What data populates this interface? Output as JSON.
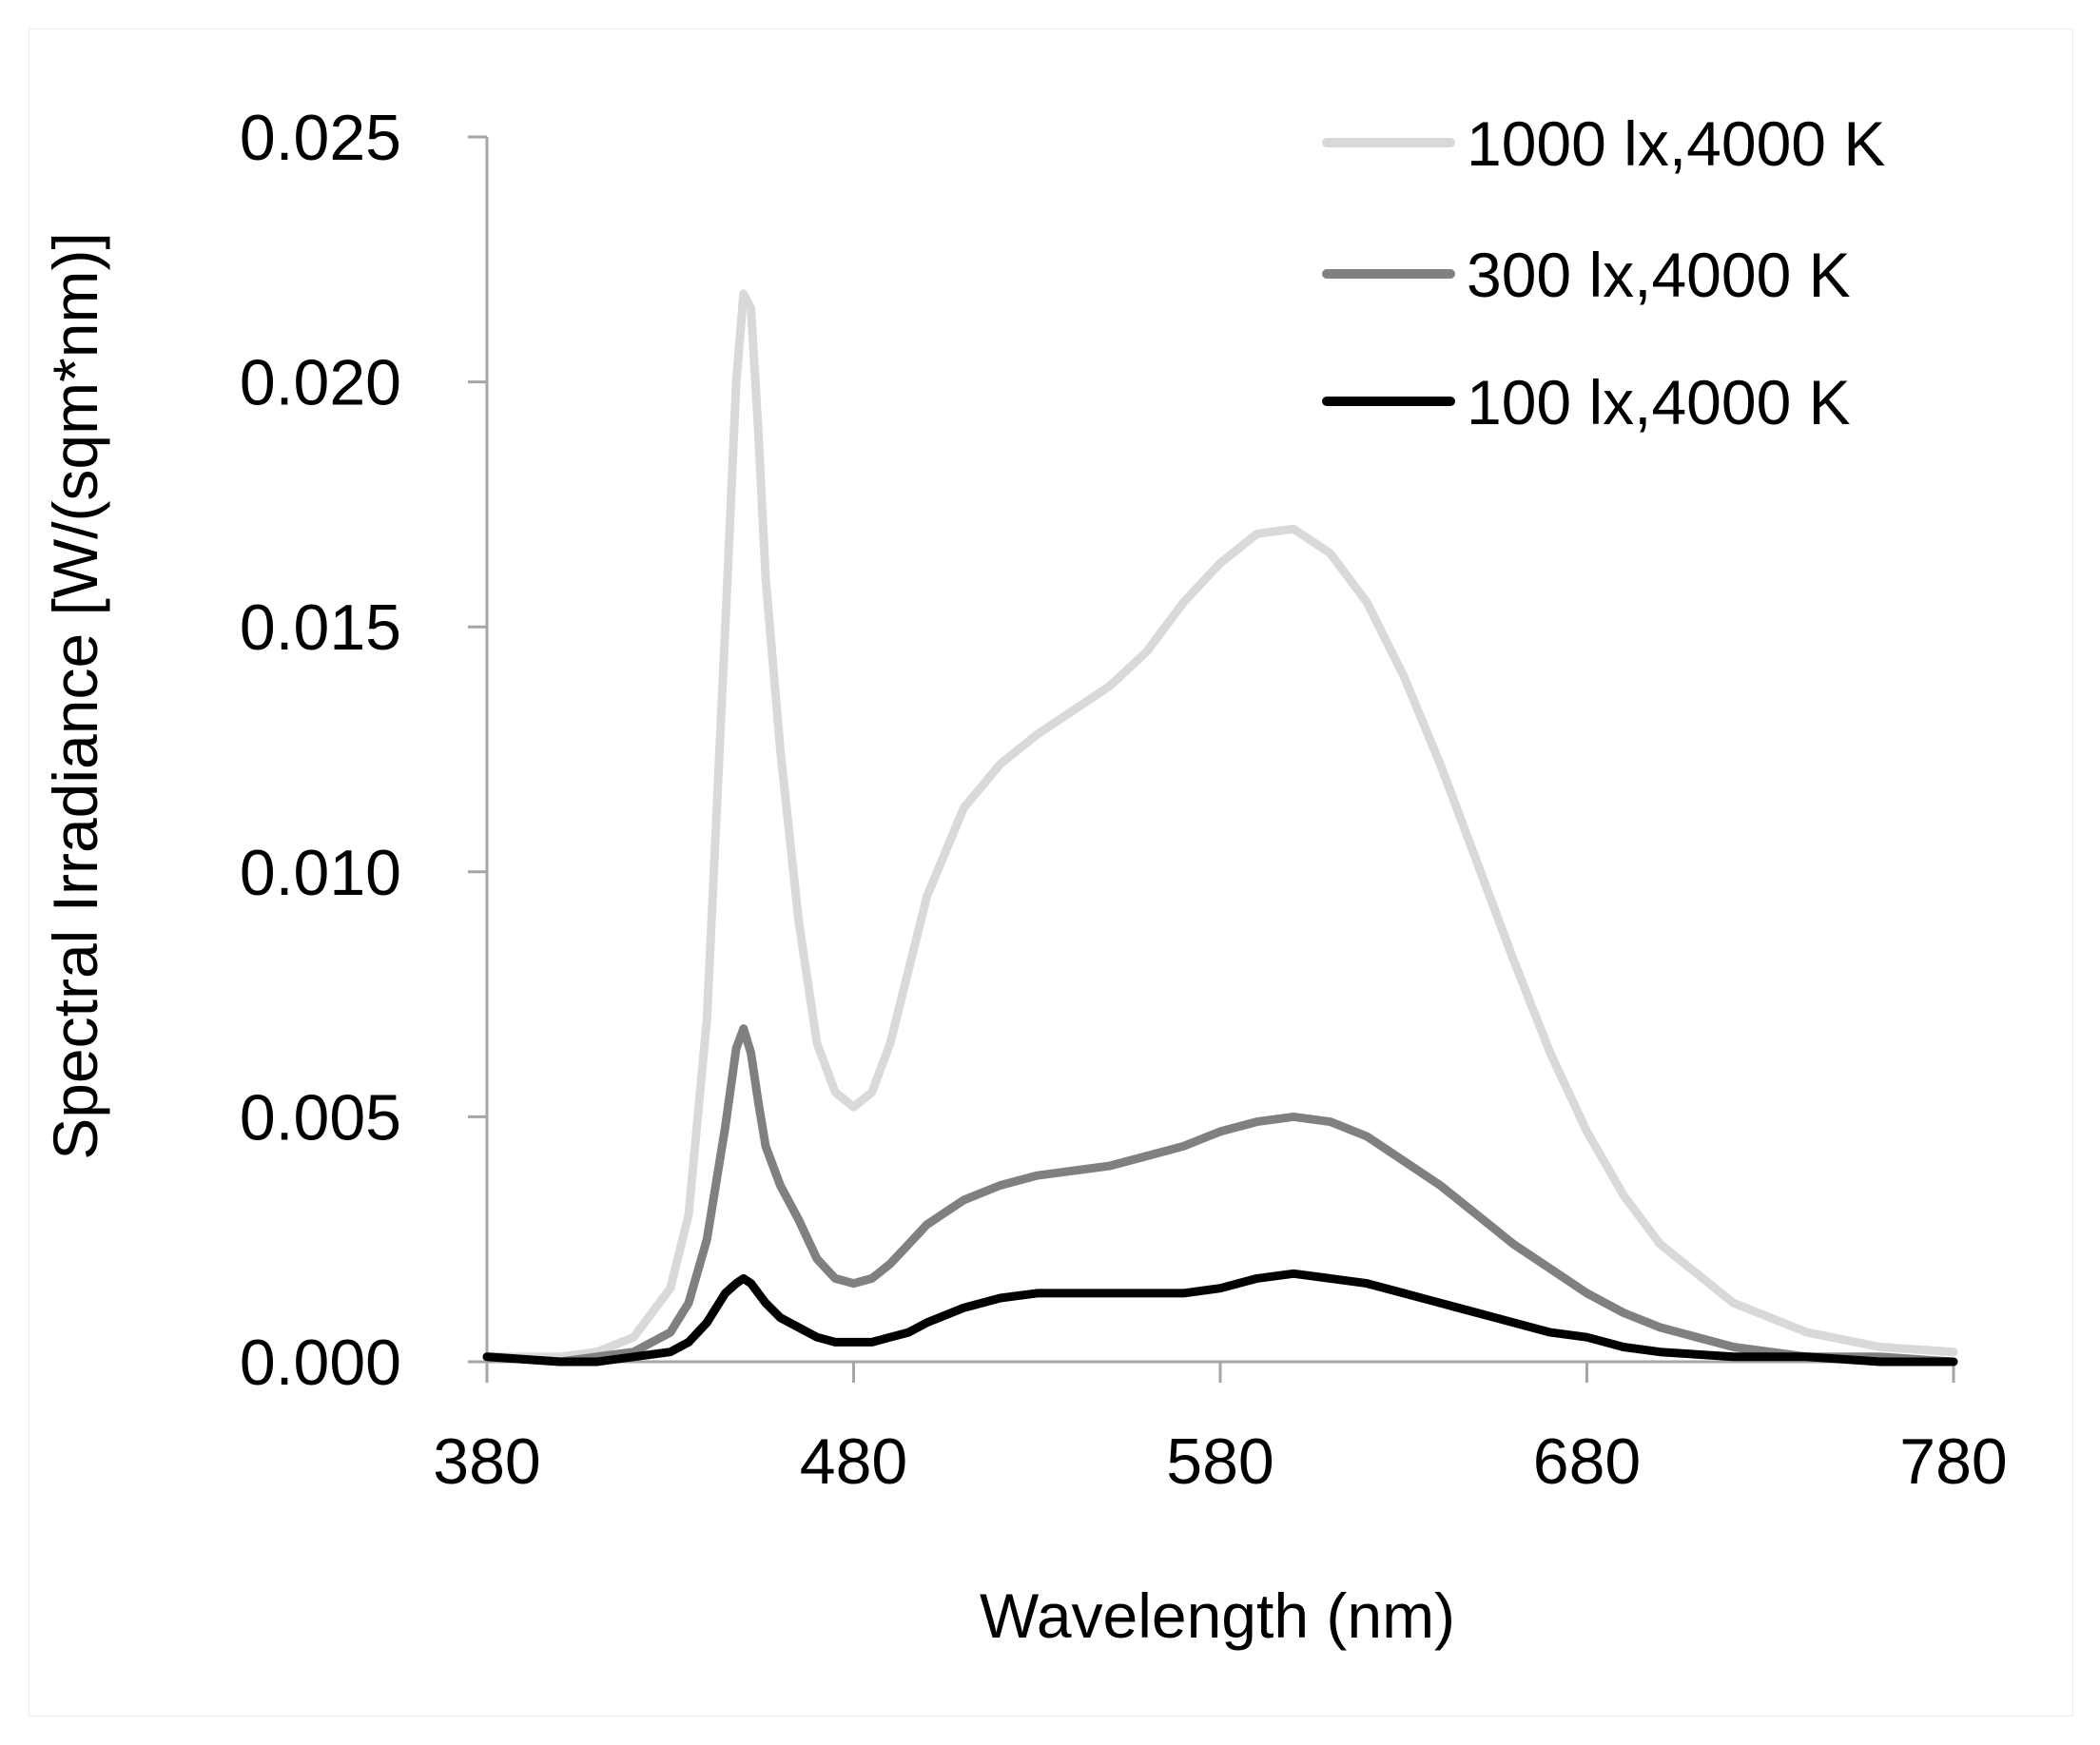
{
  "chart_data": {
    "type": "line",
    "title": "",
    "xlabel": "Wavelength (nm)",
    "ylabel": "Spectral Irradiance [W/(sqm*nm)]",
    "xlim": [
      380,
      780
    ],
    "ylim": [
      0,
      0.025
    ],
    "x_ticks": [
      380,
      480,
      580,
      680,
      780
    ],
    "x_tick_labels": [
      "380",
      "480",
      "580",
      "680",
      "780"
    ],
    "y_ticks": [
      0,
      0.005,
      0.01,
      0.015,
      0.02,
      0.025
    ],
    "y_tick_labels": [
      "0.000",
      "0.005",
      "0.010",
      "0.015",
      "0.020",
      "0.025"
    ],
    "grid": false,
    "legend_position": "top-right",
    "series": [
      {
        "name": "1000 lx,4000 K",
        "color": "#d9d9d9",
        "x": [
          380,
          400,
          410,
          420,
          430,
          435,
          440,
          445,
          448,
          450,
          452,
          454,
          456,
          460,
          465,
          470,
          475,
          480,
          485,
          490,
          495,
          500,
          510,
          520,
          530,
          540,
          550,
          560,
          570,
          580,
          590,
          600,
          610,
          620,
          630,
          640,
          650,
          660,
          670,
          680,
          690,
          700,
          720,
          740,
          760,
          780
        ],
        "y": [
          0.0001,
          0.0001,
          0.0002,
          0.0005,
          0.0015,
          0.003,
          0.007,
          0.015,
          0.02,
          0.0218,
          0.0215,
          0.019,
          0.016,
          0.0125,
          0.009,
          0.0065,
          0.0055,
          0.0052,
          0.0055,
          0.0065,
          0.008,
          0.0095,
          0.0113,
          0.0122,
          0.0128,
          0.0133,
          0.0138,
          0.0145,
          0.0155,
          0.0163,
          0.0169,
          0.017,
          0.0165,
          0.0155,
          0.014,
          0.0122,
          0.0102,
          0.0082,
          0.0063,
          0.0047,
          0.0034,
          0.0024,
          0.0012,
          0.0006,
          0.0003,
          0.0002
        ]
      },
      {
        "name": "300 lx,4000 K",
        "color": "#808080",
        "x": [
          380,
          400,
          410,
          420,
          430,
          435,
          440,
          445,
          448,
          450,
          452,
          454,
          456,
          460,
          465,
          470,
          475,
          480,
          485,
          490,
          495,
          500,
          510,
          520,
          530,
          540,
          550,
          560,
          570,
          580,
          590,
          600,
          610,
          620,
          630,
          640,
          650,
          660,
          670,
          680,
          690,
          700,
          720,
          740,
          760,
          780
        ],
        "y": [
          0.0001,
          0.0,
          0.0001,
          0.0002,
          0.0006,
          0.0012,
          0.0025,
          0.0048,
          0.0064,
          0.0068,
          0.0063,
          0.0053,
          0.0044,
          0.0036,
          0.0029,
          0.0021,
          0.0017,
          0.0016,
          0.0017,
          0.002,
          0.0024,
          0.0028,
          0.0033,
          0.0036,
          0.0038,
          0.0039,
          0.004,
          0.0042,
          0.0044,
          0.0047,
          0.0049,
          0.005,
          0.0049,
          0.0046,
          0.0041,
          0.0036,
          0.003,
          0.0024,
          0.0019,
          0.0014,
          0.001,
          0.0007,
          0.0003,
          0.0001,
          0.0001,
          0.0
        ]
      },
      {
        "name": "100 lx,4000 K",
        "color": "#000000",
        "x": [
          380,
          400,
          410,
          420,
          430,
          435,
          440,
          445,
          448,
          450,
          452,
          454,
          456,
          460,
          465,
          470,
          475,
          480,
          485,
          490,
          495,
          500,
          510,
          520,
          530,
          540,
          550,
          560,
          570,
          580,
          590,
          600,
          610,
          620,
          630,
          640,
          650,
          660,
          670,
          680,
          690,
          700,
          720,
          740,
          760,
          780
        ],
        "y": [
          0.0001,
          0.0,
          0.0,
          0.0001,
          0.0002,
          0.0004,
          0.0008,
          0.0014,
          0.0016,
          0.0017,
          0.0016,
          0.0014,
          0.0012,
          0.0009,
          0.0007,
          0.0005,
          0.0004,
          0.0004,
          0.0004,
          0.0005,
          0.0006,
          0.0008,
          0.0011,
          0.0013,
          0.0014,
          0.0014,
          0.0014,
          0.0014,
          0.0014,
          0.0015,
          0.0017,
          0.0018,
          0.0017,
          0.0016,
          0.0014,
          0.0012,
          0.001,
          0.0008,
          0.0006,
          0.0005,
          0.0003,
          0.0002,
          0.0001,
          0.0001,
          0.0,
          0.0
        ]
      }
    ]
  }
}
